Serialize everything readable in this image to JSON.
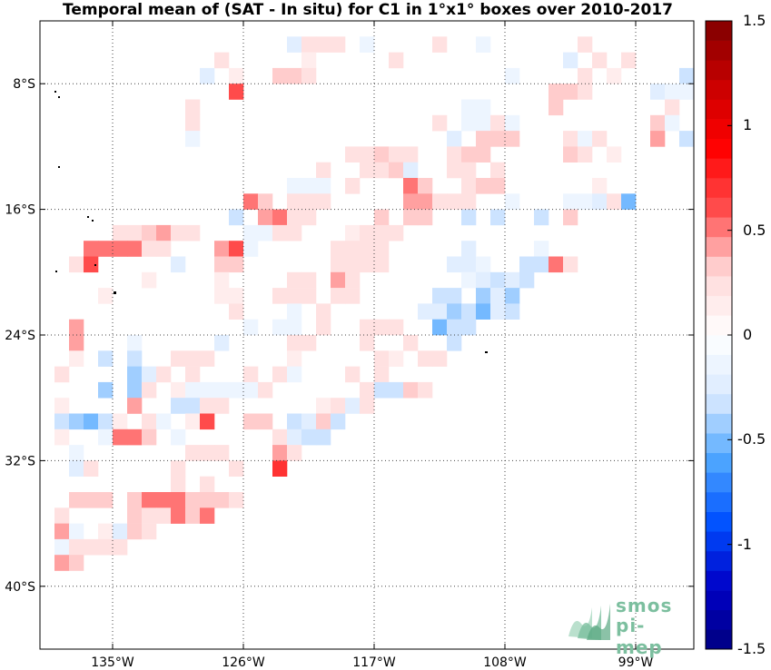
{
  "title": "Temporal mean of (SAT - In situ) for C1 in 1°x1° boxes over 2010-2017",
  "map": {
    "lon_range": [
      -140,
      -95
    ],
    "lat_range": [
      -44,
      -4
    ],
    "x_ticks": [
      {
        "lon": -135,
        "label": "135°W"
      },
      {
        "lon": -126,
        "label": "126°W"
      },
      {
        "lon": -117,
        "label": "117°W"
      },
      {
        "lon": -108,
        "label": "108°W"
      },
      {
        "lon": -99,
        "label": "99°W"
      }
    ],
    "y_ticks": [
      {
        "lat": -8,
        "label": "8°S"
      },
      {
        "lat": -16,
        "label": "16°S"
      },
      {
        "lat": -24,
        "label": "24°S"
      },
      {
        "lat": -32,
        "label": "32°S"
      },
      {
        "lat": -40,
        "label": "40°S"
      }
    ],
    "cells": [
      [
        -123,
        -5,
        -0.2
      ],
      [
        -122,
        -5,
        0.2
      ],
      [
        -121,
        -5,
        0.2
      ],
      [
        -120,
        -5,
        0.2
      ],
      [
        -118,
        -5,
        -0.1
      ],
      [
        -113,
        -5,
        0.2
      ],
      [
        -110,
        -5,
        -0.1
      ],
      [
        -103,
        -5,
        0.2
      ],
      [
        -128,
        -6,
        0.2
      ],
      [
        -122,
        -6,
        0.1
      ],
      [
        -116,
        -6,
        0.2
      ],
      [
        -104,
        -6,
        -0.2
      ],
      [
        -102,
        -6,
        0.2
      ],
      [
        -100,
        -6,
        0.2
      ],
      [
        -129,
        -7,
        -0.2
      ],
      [
        -127,
        -7,
        0.1
      ],
      [
        -124,
        -7,
        0.3
      ],
      [
        -123,
        -7,
        0.3
      ],
      [
        -122,
        -7,
        0.2
      ],
      [
        -108,
        -7,
        -0.1
      ],
      [
        -103,
        -7,
        0.2
      ],
      [
        -101,
        -7,
        0.1
      ],
      [
        -96,
        -7,
        -0.3
      ],
      [
        -127,
        -8,
        0.6
      ],
      [
        -105,
        -8,
        0.3
      ],
      [
        -104,
        -8,
        0.3
      ],
      [
        -103,
        -8,
        0.2
      ],
      [
        -98,
        -8,
        -0.2
      ],
      [
        -97,
        -8,
        -0.1
      ],
      [
        -96,
        -8,
        -0.1
      ],
      [
        -130,
        -9,
        0.2
      ],
      [
        -111,
        -9,
        -0.1
      ],
      [
        -110,
        -9,
        -0.1
      ],
      [
        -105,
        -9,
        0.3
      ],
      [
        -97,
        -9,
        0.2
      ],
      [
        -130,
        -10,
        0.2
      ],
      [
        -113,
        -10,
        0.2
      ],
      [
        -111,
        -10,
        -0.1
      ],
      [
        -110,
        -10,
        -0.1
      ],
      [
        -109,
        -10,
        0.2
      ],
      [
        -108,
        -10,
        -0.1
      ],
      [
        -98,
        -10,
        0.3
      ],
      [
        -97,
        -10,
        -0.1
      ],
      [
        -130,
        -11,
        -0.1
      ],
      [
        -112,
        -11,
        -0.2
      ],
      [
        -110,
        -11,
        0.3
      ],
      [
        -109,
        -11,
        0.3
      ],
      [
        -108,
        -11,
        0.3
      ],
      [
        -104,
        -11,
        0.2
      ],
      [
        -103,
        -11,
        -0.1
      ],
      [
        -102,
        -11,
        0.2
      ],
      [
        -98,
        -11,
        0.4
      ],
      [
        -96,
        -11,
        -0.3
      ],
      [
        -119,
        -12,
        0.2
      ],
      [
        -118,
        -12,
        0.2
      ],
      [
        -117,
        -12,
        0.3
      ],
      [
        -116,
        -12,
        0.2
      ],
      [
        -115,
        -12,
        0.2
      ],
      [
        -112,
        -12,
        0.2
      ],
      [
        -111,
        -12,
        0.3
      ],
      [
        -110,
        -12,
        0.3
      ],
      [
        -104,
        -12,
        0.3
      ],
      [
        -103,
        -12,
        0.2
      ],
      [
        -101,
        -12,
        0.1
      ],
      [
        -121,
        -13,
        0.2
      ],
      [
        -118,
        -13,
        0.2
      ],
      [
        -117,
        -13,
        0.2
      ],
      [
        -116,
        -13,
        0.3
      ],
      [
        -115,
        -13,
        -0.2
      ],
      [
        -112,
        -13,
        0.2
      ],
      [
        -111,
        -13,
        0.2
      ],
      [
        -109,
        -13,
        0.2
      ],
      [
        -123,
        -14,
        -0.1
      ],
      [
        -122,
        -14,
        -0.1
      ],
      [
        -121,
        -14,
        -0.1
      ],
      [
        -119,
        -14,
        0.2
      ],
      [
        -115,
        -14,
        0.5
      ],
      [
        -114,
        -14,
        0.3
      ],
      [
        -111,
        -14,
        0.2
      ],
      [
        -110,
        -14,
        0.3
      ],
      [
        -109,
        -14,
        0.3
      ],
      [
        -102,
        -14,
        0.1
      ],
      [
        -126,
        -15,
        0.5
      ],
      [
        -125,
        -15,
        0.3
      ],
      [
        -123,
        -15,
        0.2
      ],
      [
        -122,
        -15,
        0.2
      ],
      [
        -121,
        -15,
        0.2
      ],
      [
        -115,
        -15,
        0.4
      ],
      [
        -114,
        -15,
        0.4
      ],
      [
        -113,
        -15,
        0.2
      ],
      [
        -112,
        -15,
        0.2
      ],
      [
        -111,
        -15,
        0.2
      ],
      [
        -108,
        -15,
        -0.1
      ],
      [
        -104,
        -15,
        -0.1
      ],
      [
        -103,
        -15,
        -0.1
      ],
      [
        -102,
        -15,
        -0.2
      ],
      [
        -101,
        -15,
        0.2
      ],
      [
        -100,
        -15,
        -0.5
      ],
      [
        -127,
        -16,
        -0.3
      ],
      [
        -125,
        -16,
        0.4
      ],
      [
        -124,
        -16,
        0.5
      ],
      [
        -123,
        -16,
        0.2
      ],
      [
        -122,
        -16,
        0.2
      ],
      [
        -117,
        -16,
        0.3
      ],
      [
        -115,
        -16,
        0.3
      ],
      [
        -114,
        -16,
        0.3
      ],
      [
        -111,
        -16,
        -0.3
      ],
      [
        -109,
        -16,
        -0.3
      ],
      [
        -106,
        -16,
        -0.3
      ],
      [
        -104,
        -16,
        0.3
      ],
      [
        -135,
        -17,
        0.2
      ],
      [
        -134,
        -17,
        0.2
      ],
      [
        -133,
        -17,
        0.3
      ],
      [
        -132,
        -17,
        0.4
      ],
      [
        -131,
        -17,
        0.2
      ],
      [
        -130,
        -17,
        0.2
      ],
      [
        -126,
        -17,
        -0.1
      ],
      [
        -125,
        -17,
        -0.1
      ],
      [
        -124,
        -17,
        0.2
      ],
      [
        -123,
        -17,
        0.2
      ],
      [
        -119,
        -17,
        0.1
      ],
      [
        -118,
        -17,
        0.2
      ],
      [
        -117,
        -17,
        0.2
      ],
      [
        -116,
        -17,
        0.2
      ],
      [
        -137,
        -18,
        0.5
      ],
      [
        -136,
        -18,
        0.5
      ],
      [
        -135,
        -18,
        0.5
      ],
      [
        -134,
        -18,
        0.5
      ],
      [
        -133,
        -18,
        0.2
      ],
      [
        -132,
        -18,
        0.2
      ],
      [
        -128,
        -18,
        0.4
      ],
      [
        -127,
        -18,
        0.6
      ],
      [
        -126,
        -18,
        -0.1
      ],
      [
        -120,
        -18,
        0.2
      ],
      [
        -119,
        -18,
        0.2
      ],
      [
        -118,
        -18,
        0.2
      ],
      [
        -117,
        -18,
        0.2
      ],
      [
        -111,
        -18,
        -0.2
      ],
      [
        -106,
        -18,
        -0.1
      ],
      [
        -138,
        -19,
        0.2
      ],
      [
        -137,
        -19,
        0.6
      ],
      [
        -131,
        -19,
        -0.2
      ],
      [
        -128,
        -19,
        0.3
      ],
      [
        -127,
        -19,
        0.3
      ],
      [
        -120,
        -19,
        0.2
      ],
      [
        -119,
        -19,
        0.2
      ],
      [
        -118,
        -19,
        0.2
      ],
      [
        -117,
        -19,
        0.2
      ],
      [
        -112,
        -19,
        -0.2
      ],
      [
        -111,
        -19,
        -0.2
      ],
      [
        -110,
        -19,
        -0.1
      ],
      [
        -107,
        -19,
        -0.3
      ],
      [
        -106,
        -19,
        -0.3
      ],
      [
        -105,
        -19,
        0.5
      ],
      [
        -104,
        -19,
        0.2
      ],
      [
        -133,
        -20,
        0.1
      ],
      [
        -128,
        -20,
        0.1
      ],
      [
        -123,
        -20,
        0.2
      ],
      [
        -122,
        -20,
        0.2
      ],
      [
        -120,
        -20,
        0.4
      ],
      [
        -119,
        -20,
        0.2
      ],
      [
        -111,
        -20,
        -0.1
      ],
      [
        -110,
        -20,
        -0.2
      ],
      [
        -109,
        -20,
        -0.3
      ],
      [
        -108,
        -20,
        -0.2
      ],
      [
        -107,
        -20,
        -0.3
      ],
      [
        -136,
        -21,
        0.1
      ],
      [
        -128,
        -21,
        0.1
      ],
      [
        -127,
        -21,
        0.1
      ],
      [
        -124,
        -21,
        0.2
      ],
      [
        -123,
        -21,
        0.2
      ],
      [
        -122,
        -21,
        0.2
      ],
      [
        -120,
        -21,
        0.2
      ],
      [
        -119,
        -21,
        0.2
      ],
      [
        -113,
        -21,
        -0.3
      ],
      [
        -112,
        -21,
        -0.3
      ],
      [
        -110,
        -21,
        -0.4
      ],
      [
        -109,
        -21,
        -0.2
      ],
      [
        -108,
        -21,
        -0.4
      ],
      [
        -127,
        -22,
        0.2
      ],
      [
        -123,
        -22,
        -0.1
      ],
      [
        -121,
        -22,
        0.2
      ],
      [
        -114,
        -22,
        -0.2
      ],
      [
        -113,
        -22,
        -0.2
      ],
      [
        -112,
        -22,
        -0.4
      ],
      [
        -111,
        -22,
        -0.3
      ],
      [
        -110,
        -22,
        -0.5
      ],
      [
        -109,
        -22,
        -0.2
      ],
      [
        -108,
        -22,
        -0.3
      ],
      [
        -138,
        -23,
        0.4
      ],
      [
        -126,
        -23,
        -0.1
      ],
      [
        -124,
        -23,
        -0.1
      ],
      [
        -123,
        -23,
        -0.1
      ],
      [
        -121,
        -23,
        0.2
      ],
      [
        -118,
        -23,
        0.2
      ],
      [
        -117,
        -23,
        0.2
      ],
      [
        -116,
        -23,
        0.2
      ],
      [
        -113,
        -23,
        -0.5
      ],
      [
        -112,
        -23,
        -0.3
      ],
      [
        -111,
        -23,
        -0.3
      ],
      [
        -138,
        -24,
        0.4
      ],
      [
        -134,
        -24,
        -0.1
      ],
      [
        -128,
        -24,
        -0.2
      ],
      [
        -123,
        -24,
        0.2
      ],
      [
        -122,
        -24,
        0.2
      ],
      [
        -118,
        -24,
        0.2
      ],
      [
        -115,
        -24,
        0.2
      ],
      [
        -112,
        -24,
        -0.3
      ],
      [
        -138,
        -25,
        0.1
      ],
      [
        -136,
        -25,
        -0.3
      ],
      [
        -134,
        -25,
        -0.3
      ],
      [
        -131,
        -25,
        0.2
      ],
      [
        -130,
        -25,
        0.2
      ],
      [
        -129,
        -25,
        0.2
      ],
      [
        -123,
        -25,
        0.1
      ],
      [
        -117,
        -25,
        0.2
      ],
      [
        -116,
        -25,
        0.1
      ],
      [
        -114,
        -25,
        0.2
      ],
      [
        -113,
        -25,
        0.2
      ],
      [
        -139,
        -26,
        0.2
      ],
      [
        -134,
        -26,
        -0.4
      ],
      [
        -133,
        -26,
        -0.2
      ],
      [
        -132,
        -26,
        0.2
      ],
      [
        -130,
        -26,
        0.2
      ],
      [
        -126,
        -26,
        0.2
      ],
      [
        -124,
        -26,
        0.2
      ],
      [
        -123,
        -26,
        -0.1
      ],
      [
        -119,
        -26,
        0.2
      ],
      [
        -117,
        -26,
        0.2
      ],
      [
        -136,
        -27,
        -0.4
      ],
      [
        -134,
        -27,
        -0.4
      ],
      [
        -133,
        -27,
        0.2
      ],
      [
        -131,
        -27,
        0.1
      ],
      [
        -130,
        -27,
        -0.1
      ],
      [
        -129,
        -27,
        -0.1
      ],
      [
        -128,
        -27,
        -0.1
      ],
      [
        -127,
        -27,
        -0.1
      ],
      [
        -126,
        -27,
        -0.1
      ],
      [
        -125,
        -27,
        0.2
      ],
      [
        -118,
        -27,
        0.2
      ],
      [
        -117,
        -27,
        -0.3
      ],
      [
        -116,
        -27,
        -0.3
      ],
      [
        -115,
        -27,
        0.3
      ],
      [
        -114,
        -27,
        0.2
      ],
      [
        -139,
        -28,
        0.1
      ],
      [
        -134,
        -28,
        0.4
      ],
      [
        -131,
        -28,
        -0.3
      ],
      [
        -130,
        -28,
        -0.3
      ],
      [
        -129,
        -28,
        0.2
      ],
      [
        -128,
        -28,
        0.2
      ],
      [
        -121,
        -28,
        0.1
      ],
      [
        -120,
        -28,
        0.2
      ],
      [
        -119,
        -28,
        -0.2
      ],
      [
        -118,
        -28,
        0.2
      ],
      [
        -139,
        -29,
        -0.3
      ],
      [
        -138,
        -29,
        -0.4
      ],
      [
        -137,
        -29,
        -0.5
      ],
      [
        -136,
        -29,
        -0.3
      ],
      [
        -135,
        -29,
        0.1
      ],
      [
        -133,
        -29,
        0.2
      ],
      [
        -132,
        -29,
        -0.1
      ],
      [
        -130,
        -29,
        0.1
      ],
      [
        -129,
        -29,
        0.6
      ],
      [
        -126,
        -29,
        0.3
      ],
      [
        -125,
        -29,
        0.3
      ],
      [
        -123,
        -29,
        -0.3
      ],
      [
        -122,
        -29,
        -0.2
      ],
      [
        -121,
        -29,
        0.3
      ],
      [
        -120,
        -29,
        -0.3
      ],
      [
        -139,
        -30,
        0.1
      ],
      [
        -136,
        -30,
        -0.1
      ],
      [
        -135,
        -30,
        0.5
      ],
      [
        -134,
        -30,
        0.5
      ],
      [
        -133,
        -30,
        0.3
      ],
      [
        -131,
        -30,
        -0.1
      ],
      [
        -124,
        -30,
        0.2
      ],
      [
        -123,
        -30,
        -0.2
      ],
      [
        -122,
        -30,
        -0.3
      ],
      [
        -121,
        -30,
        -0.3
      ],
      [
        -138,
        -31,
        -0.1
      ],
      [
        -130,
        -31,
        0.2
      ],
      [
        -129,
        -31,
        0.2
      ],
      [
        -128,
        -31,
        0.2
      ],
      [
        -124,
        -31,
        0.4
      ],
      [
        -123,
        -31,
        0.2
      ],
      [
        -138,
        -32,
        -0.2
      ],
      [
        -137,
        -32,
        0.2
      ],
      [
        -131,
        -32,
        0.2
      ],
      [
        -127,
        -32,
        0.2
      ],
      [
        -124,
        -32,
        0.7
      ],
      [
        -131,
        -33,
        0.2
      ],
      [
        -129,
        -33,
        0.2
      ],
      [
        -138,
        -34,
        0.3
      ],
      [
        -137,
        -34,
        0.3
      ],
      [
        -136,
        -34,
        0.3
      ],
      [
        -134,
        -34,
        0.3
      ],
      [
        -133,
        -34,
        0.5
      ],
      [
        -132,
        -34,
        0.5
      ],
      [
        -131,
        -34,
        0.5
      ],
      [
        -130,
        -34,
        0.3
      ],
      [
        -129,
        -34,
        0.3
      ],
      [
        -128,
        -34,
        0.3
      ],
      [
        -127,
        -34,
        0.2
      ],
      [
        -139,
        -35,
        0.2
      ],
      [
        -134,
        -35,
        0.3
      ],
      [
        -133,
        -35,
        0.2
      ],
      [
        -132,
        -35,
        0.2
      ],
      [
        -131,
        -35,
        0.5
      ],
      [
        -130,
        -35,
        0.3
      ],
      [
        -129,
        -35,
        0.5
      ],
      [
        -139,
        -36,
        0.4
      ],
      [
        -138,
        -36,
        -0.1
      ],
      [
        -136,
        -36,
        0.1
      ],
      [
        -135,
        -36,
        -0.2
      ],
      [
        -134,
        -36,
        0.3
      ],
      [
        -133,
        -36,
        0.2
      ],
      [
        -139,
        -37,
        -0.1
      ],
      [
        -138,
        -37,
        0.2
      ],
      [
        -137,
        -37,
        0.2
      ],
      [
        -136,
        -37,
        0.2
      ],
      [
        -135,
        -37,
        0.2
      ],
      [
        -139,
        -38,
        0.4
      ],
      [
        -138,
        -38,
        0.3
      ]
    ]
  },
  "colorbar": {
    "min": -1.5,
    "max": 1.5,
    "steps": 32,
    "labels": [
      "1.5",
      "1",
      "0.5",
      "0",
      "-0.5",
      "-1",
      "-1.5"
    ],
    "label_values": [
      1.5,
      1,
      0.5,
      0,
      -0.5,
      -1,
      -1.5
    ],
    "colors": [
      "#000080",
      "#0000c8",
      "#0050ff",
      "#4da6ff",
      "#d9e9ff",
      "#ffffff",
      "#ffd9d9",
      "#ff4d4d",
      "#ff0000",
      "#c80000",
      "#800000"
    ]
  },
  "logo": {
    "line1": "smos",
    "line2": "pi-mep"
  }
}
